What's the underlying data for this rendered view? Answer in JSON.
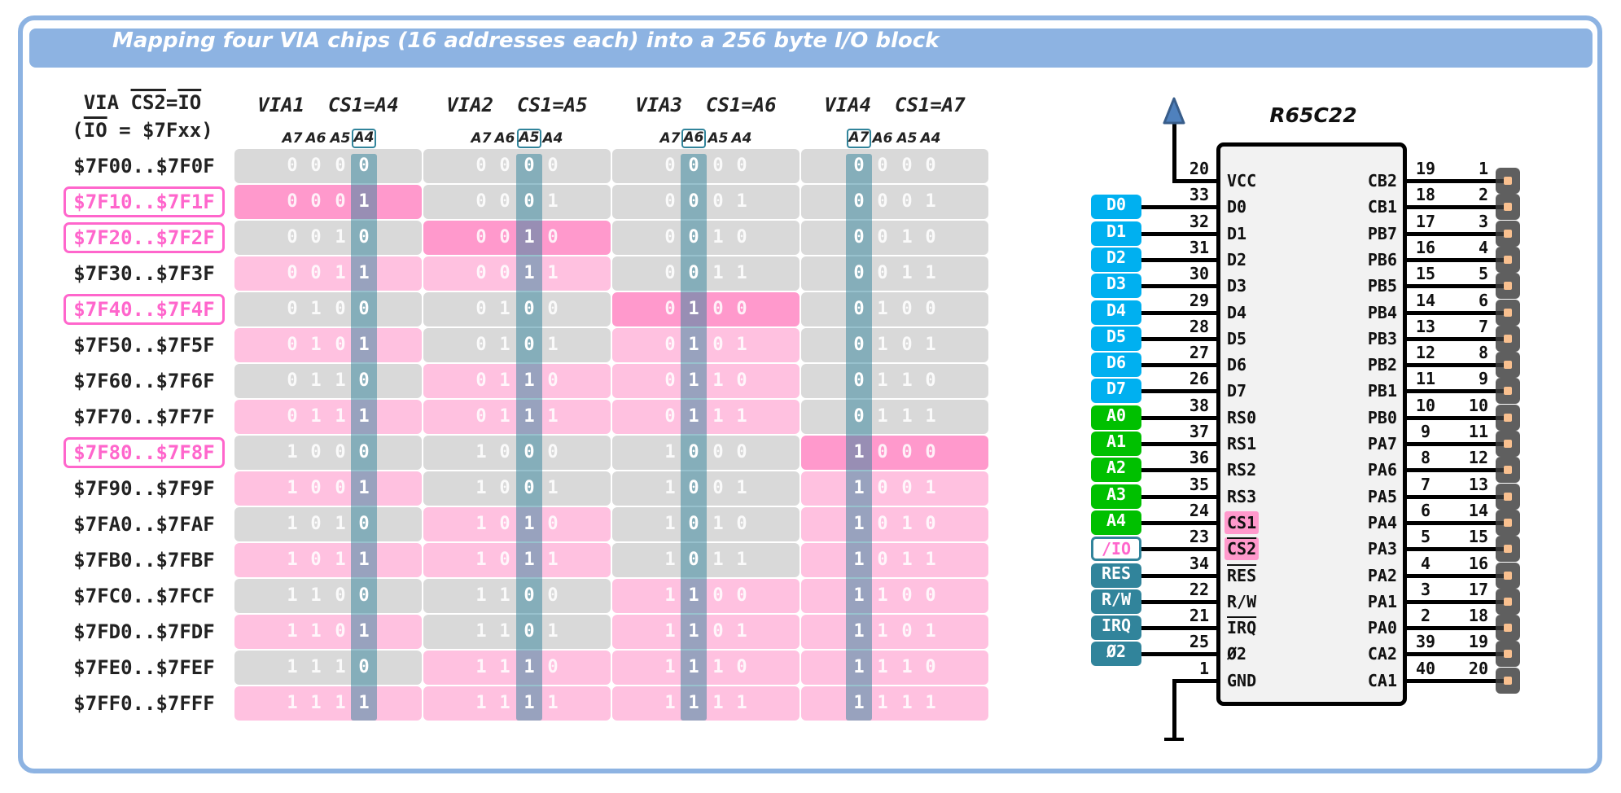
{
  "title": "Mapping four VIA chips (16 addresses each) into a 256 byte I/O block",
  "left_header": {
    "via": "VIA ",
    "cs2": "CS2",
    "eq": "=",
    "io": "IO",
    "open": "(",
    "io2": "IO",
    "rest": " = $7Fxx)"
  },
  "bit_labels": [
    "A7",
    "A6",
    "A5",
    "A4"
  ],
  "vias": [
    {
      "title": "VIA1  CS1=A4",
      "cs1_bit": "A4"
    },
    {
      "title": "VIA2  CS1=A5",
      "cs1_bit": "A5"
    },
    {
      "title": "VIA3  CS1=A6",
      "cs1_bit": "A6"
    },
    {
      "title": "VIA4  CS1=A7",
      "cs1_bit": "A7"
    }
  ],
  "rows": [
    {
      "range": "$7F00..$7F0F",
      "bits": "0000",
      "highlight": false
    },
    {
      "range": "$7F10..$7F1F",
      "bits": "0001",
      "highlight": true
    },
    {
      "range": "$7F20..$7F2F",
      "bits": "0010",
      "highlight": true
    },
    {
      "range": "$7F30..$7F3F",
      "bits": "0011",
      "highlight": false
    },
    {
      "range": "$7F40..$7F4F",
      "bits": "0100",
      "highlight": true
    },
    {
      "range": "$7F50..$7F5F",
      "bits": "0101",
      "highlight": false
    },
    {
      "range": "$7F60..$7F6F",
      "bits": "0110",
      "highlight": false
    },
    {
      "range": "$7F70..$7F7F",
      "bits": "0111",
      "highlight": false
    },
    {
      "range": "$7F80..$7F8F",
      "bits": "1000",
      "highlight": true
    },
    {
      "range": "$7F90..$7F9F",
      "bits": "1001",
      "highlight": false
    },
    {
      "range": "$7FA0..$7FAF",
      "bits": "1010",
      "highlight": false
    },
    {
      "range": "$7FB0..$7FBF",
      "bits": "1011",
      "highlight": false
    },
    {
      "range": "$7FC0..$7FCF",
      "bits": "1100",
      "highlight": false
    },
    {
      "range": "$7FD0..$7FDF",
      "bits": "1101",
      "highlight": false
    },
    {
      "range": "$7FE0..$7FEF",
      "bits": "1110",
      "highlight": false
    },
    {
      "range": "$7FF0..$7FFF",
      "bits": "1111",
      "highlight": false
    }
  ],
  "colors": {
    "selected_only": "#ff99cc",
    "cs1_high": "#ffc1e0",
    "cs1_low": "#d9d9d9",
    "highlight_text": "#ff66cc",
    "band": "#31849b",
    "frame": "#8db3e2",
    "data_signal": "#00b0f0",
    "addr_signal": "#00c000",
    "ctrl_signal": "#31849b",
    "vcc_arrow": "#4f81bd",
    "header_pin": "#f9c08f"
  },
  "chip": {
    "title": "R65C22",
    "left_pins": [
      {
        "num": "20",
        "name": "VCC",
        "overline": false,
        "signal": null,
        "type": "power"
      },
      {
        "num": "33",
        "name": "D0",
        "overline": false,
        "signal": "D0",
        "type": "data"
      },
      {
        "num": "32",
        "name": "D1",
        "overline": false,
        "signal": "D1",
        "type": "data"
      },
      {
        "num": "31",
        "name": "D2",
        "overline": false,
        "signal": "D2",
        "type": "data"
      },
      {
        "num": "30",
        "name": "D3",
        "overline": false,
        "signal": "D3",
        "type": "data"
      },
      {
        "num": "29",
        "name": "D4",
        "overline": false,
        "signal": "D4",
        "type": "data"
      },
      {
        "num": "28",
        "name": "D5",
        "overline": false,
        "signal": "D5",
        "type": "data"
      },
      {
        "num": "27",
        "name": "D6",
        "overline": false,
        "signal": "D6",
        "type": "data"
      },
      {
        "num": "26",
        "name": "D7",
        "overline": false,
        "signal": "D7",
        "type": "data"
      },
      {
        "num": "38",
        "name": "RS0",
        "overline": false,
        "signal": "A0",
        "type": "addr"
      },
      {
        "num": "37",
        "name": "RS1",
        "overline": false,
        "signal": "A1",
        "type": "addr"
      },
      {
        "num": "36",
        "name": "RS2",
        "overline": false,
        "signal": "A2",
        "type": "addr"
      },
      {
        "num": "35",
        "name": "RS3",
        "overline": false,
        "signal": "A3",
        "type": "addr"
      },
      {
        "num": "24",
        "name": "CS1",
        "overline": false,
        "signal": "A4",
        "type": "addr",
        "cs": true
      },
      {
        "num": "23",
        "name": "CS2",
        "overline": true,
        "signal": "/IO",
        "type": "io",
        "cs": true
      },
      {
        "num": "34",
        "name": "RES",
        "overline": true,
        "signal": "RES",
        "type": "ctrl"
      },
      {
        "num": "22",
        "name": "R/W",
        "overline": false,
        "signal": "R/W",
        "type": "ctrl"
      },
      {
        "num": "21",
        "name": "IRQ",
        "overline": true,
        "signal": "IRQ",
        "type": "ctrl"
      },
      {
        "num": "25",
        "name": "Ø2",
        "overline": false,
        "signal": "Ø2",
        "type": "ctrl"
      },
      {
        "num": "1",
        "name": "GND",
        "overline": false,
        "signal": null,
        "type": "ground"
      }
    ],
    "right_pins": [
      {
        "num": "19",
        "name": "CB2",
        "header": "1"
      },
      {
        "num": "18",
        "name": "CB1",
        "header": "2"
      },
      {
        "num": "17",
        "name": "PB7",
        "header": "3"
      },
      {
        "num": "16",
        "name": "PB6",
        "header": "4"
      },
      {
        "num": "15",
        "name": "PB5",
        "header": "5"
      },
      {
        "num": "14",
        "name": "PB4",
        "header": "6"
      },
      {
        "num": "13",
        "name": "PB3",
        "header": "7"
      },
      {
        "num": "12",
        "name": "PB2",
        "header": "8"
      },
      {
        "num": "11",
        "name": "PB1",
        "header": "9"
      },
      {
        "num": "10",
        "name": "PB0",
        "header": "10"
      },
      {
        "num": "9",
        "name": "PA7",
        "header": "11"
      },
      {
        "num": "8",
        "name": "PA6",
        "header": "12"
      },
      {
        "num": "7",
        "name": "PA5",
        "header": "13"
      },
      {
        "num": "6",
        "name": "PA4",
        "header": "14"
      },
      {
        "num": "5",
        "name": "PA3",
        "header": "15"
      },
      {
        "num": "4",
        "name": "PA2",
        "header": "16"
      },
      {
        "num": "3",
        "name": "PA1",
        "header": "17"
      },
      {
        "num": "2",
        "name": "PA0",
        "header": "18"
      },
      {
        "num": "39",
        "name": "CA2",
        "header": "19"
      },
      {
        "num": "40",
        "name": "CA1",
        "header": "20"
      }
    ]
  }
}
